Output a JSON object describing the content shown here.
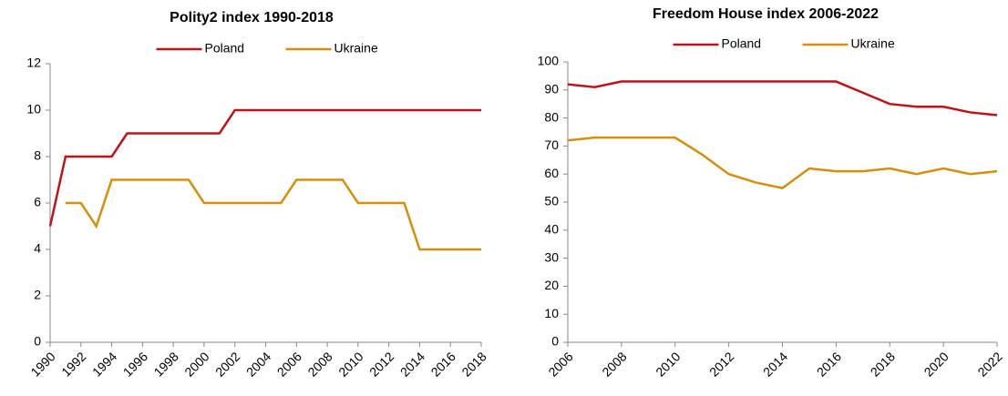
{
  "chart_data": [
    {
      "type": "line",
      "title": "Polity2 index 1990-2018",
      "x": [
        1990,
        1991,
        1992,
        1993,
        1994,
        1995,
        1996,
        1997,
        1998,
        1999,
        2000,
        2001,
        2002,
        2003,
        2004,
        2005,
        2006,
        2007,
        2008,
        2009,
        2010,
        2011,
        2012,
        2013,
        2014,
        2015,
        2016,
        2017,
        2018
      ],
      "series": [
        {
          "name": "Poland",
          "color": "#c0121a",
          "values": [
            5,
            8,
            8,
            8,
            8,
            9,
            9,
            9,
            9,
            9,
            9,
            9,
            10,
            10,
            10,
            10,
            10,
            10,
            10,
            10,
            10,
            10,
            10,
            10,
            10,
            10,
            10,
            10,
            10
          ]
        },
        {
          "name": "Ukraine",
          "color": "#d4900d",
          "values": [
            null,
            6,
            6,
            5,
            7,
            7,
            7,
            7,
            7,
            7,
            6,
            6,
            6,
            6,
            6,
            6,
            7,
            7,
            7,
            7,
            6,
            6,
            6,
            6,
            4,
            4,
            4,
            4,
            4
          ]
        }
      ],
      "xlim": [
        1990,
        2018
      ],
      "xticks": [
        1990,
        1992,
        1994,
        1996,
        1998,
        2000,
        2002,
        2004,
        2006,
        2008,
        2010,
        2012,
        2014,
        2016,
        2018
      ],
      "ylim": [
        0,
        12
      ],
      "yticks": [
        0,
        2,
        4,
        6,
        8,
        10,
        12
      ],
      "grid": false,
      "legend": "top"
    },
    {
      "type": "line",
      "title": "Freedom House index 2006-2022",
      "x": [
        2006,
        2007,
        2008,
        2009,
        2010,
        2011,
        2012,
        2013,
        2014,
        2015,
        2016,
        2017,
        2018,
        2019,
        2020,
        2021,
        2022
      ],
      "series": [
        {
          "name": "Poland",
          "color": "#c0121a",
          "values": [
            92,
            91,
            93,
            93,
            93,
            93,
            93,
            93,
            93,
            93,
            93,
            89,
            85,
            84,
            84,
            82,
            81
          ]
        },
        {
          "name": "Ukraine",
          "color": "#d4900d",
          "values": [
            72,
            73,
            73,
            73,
            73,
            67,
            60,
            57,
            55,
            62,
            61,
            61,
            62,
            60,
            62,
            60,
            61
          ]
        }
      ],
      "xlim": [
        2006,
        2022
      ],
      "xticks": [
        2006,
        2008,
        2010,
        2012,
        2014,
        2016,
        2018,
        2020,
        2022
      ],
      "ylim": [
        0,
        100
      ],
      "yticks": [
        0,
        10,
        20,
        30,
        40,
        50,
        60,
        70,
        80,
        90,
        100
      ],
      "grid": false,
      "legend": "top"
    }
  ]
}
